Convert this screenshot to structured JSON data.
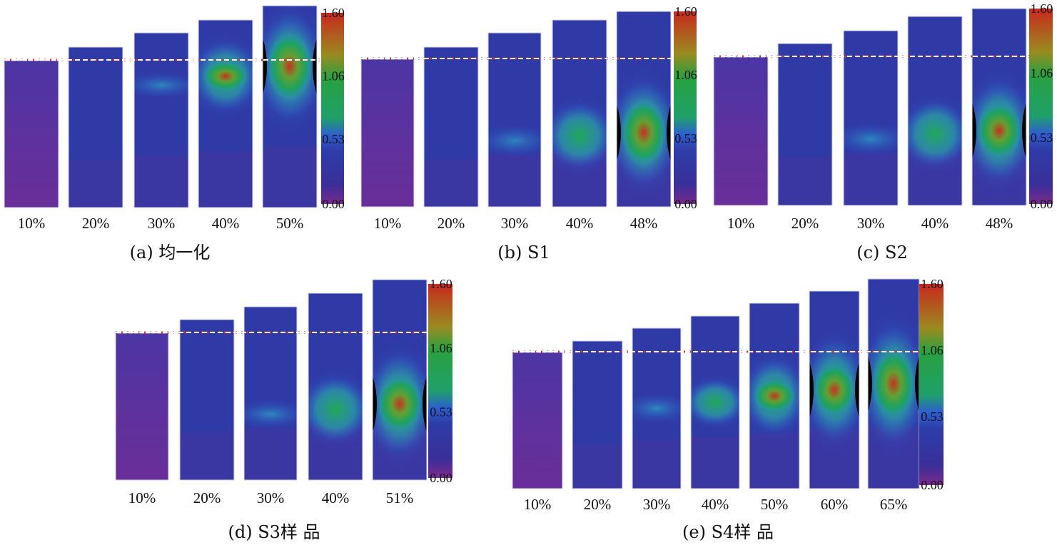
{
  "colorbar": {
    "ticks": [
      "1.60",
      "1.06",
      "0.53",
      "0.00"
    ],
    "colors": [
      "#c8281e",
      "#7a9c28",
      "#14a03c",
      "#3ab0a0",
      "#2e3da8",
      "#3a2f98",
      "#7a2a8c"
    ]
  },
  "dashed_line_color": "#ffffff",
  "dashed_marker_color": "#e03030",
  "panels": [
    {
      "caption": "(a) 均一化",
      "strains": [
        "10%",
        "20%",
        "30%",
        "40%",
        "50%"
      ],
      "specimens": [
        {
          "hot": 0.02,
          "peak": 0.0
        },
        {
          "hot": 0.04,
          "peak": 0.0
        },
        {
          "hot": 0.1,
          "peak": 0.05
        },
        {
          "hot": 0.55,
          "peak": 0.35
        },
        {
          "hot": 0.85,
          "peak": 1.0
        }
      ]
    },
    {
      "caption": "(b) S1",
      "strains": [
        "10%",
        "20%",
        "30%",
        "40%",
        "48%"
      ],
      "specimens": [
        {
          "hot": 0.02,
          "peak": 0.0
        },
        {
          "hot": 0.05,
          "peak": 0.0
        },
        {
          "hot": 0.15,
          "peak": 0.05
        },
        {
          "hot": 0.5,
          "peak": 0.3
        },
        {
          "hot": 0.85,
          "peak": 1.0
        }
      ]
    },
    {
      "caption": "(c) S2",
      "strains": [
        "10%",
        "20%",
        "30%",
        "40%",
        "48%"
      ],
      "specimens": [
        {
          "hot": 0.02,
          "peak": 0.0
        },
        {
          "hot": 0.05,
          "peak": 0.0
        },
        {
          "hot": 0.15,
          "peak": 0.05
        },
        {
          "hot": 0.5,
          "peak": 0.3
        },
        {
          "hot": 0.8,
          "peak": 0.8
        }
      ]
    },
    {
      "caption": "(d) S3样 品",
      "strains": [
        "10%",
        "20%",
        "30%",
        "40%",
        "51%"
      ],
      "specimens": [
        {
          "hot": 0.02,
          "peak": 0.0
        },
        {
          "hot": 0.05,
          "peak": 0.0
        },
        {
          "hot": 0.12,
          "peak": 0.05
        },
        {
          "hot": 0.5,
          "peak": 0.3
        },
        {
          "hot": 0.8,
          "peak": 0.8
        }
      ]
    },
    {
      "caption": "(e) S4样 品",
      "strains": [
        "10%",
        "20%",
        "30%",
        "40%",
        "50%",
        "60%",
        "65%"
      ],
      "specimens": [
        {
          "hot": 0.02,
          "peak": 0.0
        },
        {
          "hot": 0.05,
          "peak": 0.0
        },
        {
          "hot": 0.15,
          "peak": 0.05
        },
        {
          "hot": 0.35,
          "peak": 0.15
        },
        {
          "hot": 0.6,
          "peak": 0.4
        },
        {
          "hot": 0.8,
          "peak": 0.75
        },
        {
          "hot": 0.9,
          "peak": 1.0
        }
      ]
    }
  ]
}
